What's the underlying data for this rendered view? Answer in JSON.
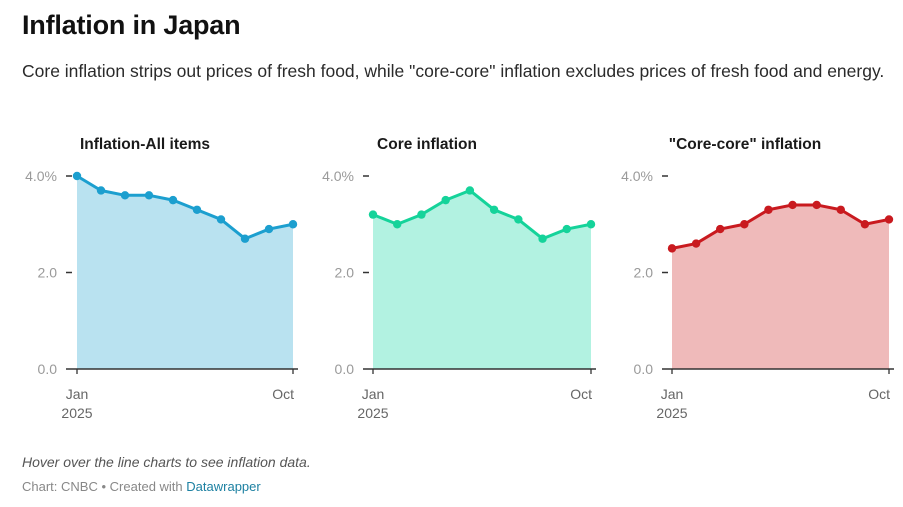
{
  "header": {
    "title": "Inflation in Japan",
    "subtitle": "Core inflation strips out prices of fresh food, while \"core-core\" inflation excludes prices of fresh food and energy."
  },
  "footer": {
    "notes": "Hover over the line charts to see inflation data.",
    "source_prefix": "Chart: CNBC",
    "separator": "•",
    "created_with": "Created with",
    "link_text": "Datawrapper"
  },
  "chart_data": [
    {
      "type": "area",
      "title": "Inflation-All items",
      "x": [
        "Jan 2025",
        "Feb 2025",
        "Mar 2025",
        "Apr 2025",
        "May 2025",
        "Jun 2025",
        "Jul 2025",
        "Aug 2025",
        "Sep 2025",
        "Oct 2025"
      ],
      "values": [
        4.0,
        3.7,
        3.6,
        3.6,
        3.5,
        3.3,
        3.1,
        2.7,
        2.9,
        3.0
      ],
      "ylim": [
        0,
        4
      ],
      "yticks": [
        {
          "value": 0,
          "label": "0.0"
        },
        {
          "value": 2,
          "label": "2.0"
        },
        {
          "value": 4,
          "label": "4.0%"
        }
      ],
      "xticks": [
        {
          "index": 0,
          "label": "Jan",
          "sublabel": "2025"
        },
        {
          "index": 9,
          "label": "Oct",
          "sublabel": ""
        }
      ],
      "line_color": "#1c9fcf",
      "fill_color": "#b9e2f0",
      "xlabel": "",
      "ylabel": ""
    },
    {
      "type": "area",
      "title": "Core inflation",
      "x": [
        "Jan 2025",
        "Feb 2025",
        "Mar 2025",
        "Apr 2025",
        "May 2025",
        "Jun 2025",
        "Jul 2025",
        "Aug 2025",
        "Sep 2025",
        "Oct 2025"
      ],
      "values": [
        3.2,
        3.0,
        3.2,
        3.5,
        3.7,
        3.3,
        3.1,
        2.7,
        2.9,
        3.0
      ],
      "ylim": [
        0,
        4
      ],
      "yticks": [
        {
          "value": 0,
          "label": "0.0"
        },
        {
          "value": 2,
          "label": "2.0"
        },
        {
          "value": 4,
          "label": "4.0%"
        }
      ],
      "xticks": [
        {
          "index": 0,
          "label": "Jan",
          "sublabel": "2025"
        },
        {
          "index": 9,
          "label": "Oct",
          "sublabel": ""
        }
      ],
      "line_color": "#15d39a",
      "fill_color": "#b2f2e1",
      "xlabel": "",
      "ylabel": ""
    },
    {
      "type": "area",
      "title": "\"Core-core\" inflation",
      "x": [
        "Jan 2025",
        "Feb 2025",
        "Mar 2025",
        "Apr 2025",
        "May 2025",
        "Jun 2025",
        "Jul 2025",
        "Aug 2025",
        "Sep 2025",
        "Oct 2025"
      ],
      "values": [
        2.5,
        2.6,
        2.9,
        3.0,
        3.3,
        3.4,
        3.4,
        3.3,
        3.0,
        3.1
      ],
      "ylim": [
        0,
        4
      ],
      "yticks": [
        {
          "value": 0,
          "label": "0.0"
        },
        {
          "value": 2,
          "label": "2.0"
        },
        {
          "value": 4,
          "label": "4.0%"
        }
      ],
      "xticks": [
        {
          "index": 0,
          "label": "Jan",
          "sublabel": "2025"
        },
        {
          "index": 9,
          "label": "Oct",
          "sublabel": ""
        }
      ],
      "line_color": "#c91a1f",
      "fill_color": "#efbaba",
      "xlabel": "",
      "ylabel": ""
    }
  ]
}
